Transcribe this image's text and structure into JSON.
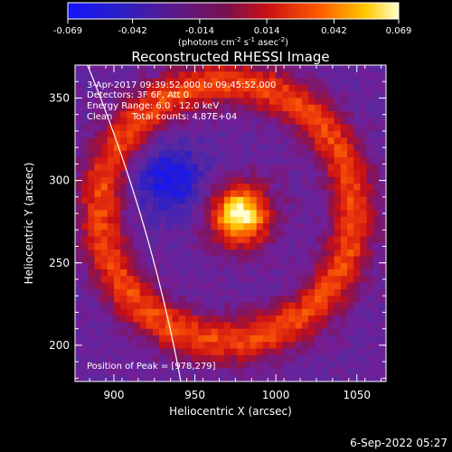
{
  "chart_data": {
    "type": "heatmap",
    "title": "Reconstructed RHESSI Image",
    "xlabel": "Heliocentric X (arcsec)",
    "ylabel": "Heliocentric Y (arcsec)",
    "xlim": [
      876,
      1068
    ],
    "ylim": [
      178,
      370
    ],
    "xticks": [
      900,
      950,
      1000,
      1050
    ],
    "yticks": [
      200,
      250,
      300,
      350
    ],
    "colorbar": {
      "min": -0.069,
      "max": 0.069,
      "ticks": [
        "-0.069",
        "-0.042",
        "-0.014",
        "0.014",
        "0.042",
        "0.069"
      ],
      "units_prefix": "(photons cm",
      "units_sup1": "-2",
      "units_mid1": " s",
      "units_sup2": "-1",
      "units_mid2": " asec",
      "units_sup3": "-2",
      "units_suffix": ")"
    },
    "annotations": {
      "time_range": "3-Apr-2017 09:39:52.000 to 09:45:52.000",
      "detectors": "Detectors: 3F 6F, Att 0",
      "energy": "Energy Range: 6.0 - 12.0 keV",
      "method": "Clean",
      "counts": "Total counts: 4.87E+04",
      "peak": "Position of Peak = [978,279]"
    },
    "peak": [
      978,
      279
    ],
    "limb_radius_arcsec": 958
  },
  "footer_date": "6-Sep-2022 05:27"
}
